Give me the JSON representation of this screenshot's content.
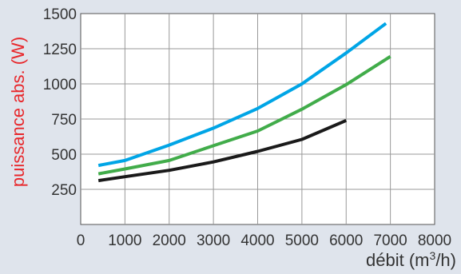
{
  "chart_data": {
    "type": "line",
    "xlabel": "débit (m",
    "xlabel_sup": "3",
    "xlabel_end": "/h)",
    "ylabel": "puissance abs. (W)",
    "xlim": [
      0,
      8000
    ],
    "ylim": [
      0,
      1500
    ],
    "x_ticks": [
      "0",
      "1000",
      "2000",
      "3000",
      "4000",
      "5000",
      "6000",
      "7000",
      "8000"
    ],
    "y_ticks": [
      "250",
      "500",
      "750",
      "1000",
      "1250",
      "1500"
    ],
    "grid": true,
    "series": [
      {
        "color": "#00a5e6",
        "points": [
          [
            400,
            420
          ],
          [
            1000,
            455
          ],
          [
            2000,
            565
          ],
          [
            3000,
            685
          ],
          [
            4000,
            825
          ],
          [
            5000,
            1000
          ],
          [
            6000,
            1220
          ],
          [
            6900,
            1430
          ]
        ]
      },
      {
        "color": "#41ac4a",
        "points": [
          [
            400,
            360
          ],
          [
            1000,
            395
          ],
          [
            2000,
            455
          ],
          [
            3000,
            560
          ],
          [
            4000,
            665
          ],
          [
            5000,
            820
          ],
          [
            6000,
            995
          ],
          [
            7000,
            1195
          ]
        ]
      },
      {
        "color": "#1a1a1a",
        "points": [
          [
            400,
            312
          ],
          [
            1000,
            340
          ],
          [
            2000,
            385
          ],
          [
            3000,
            445
          ],
          [
            4000,
            520
          ],
          [
            5000,
            605
          ],
          [
            6000,
            740
          ]
        ]
      }
    ]
  },
  "colors": {
    "background": "#dfe4ec",
    "plot_background": "#ffffff",
    "grid": "#999999",
    "ylabel": "#e8272b",
    "text": "#333333"
  }
}
